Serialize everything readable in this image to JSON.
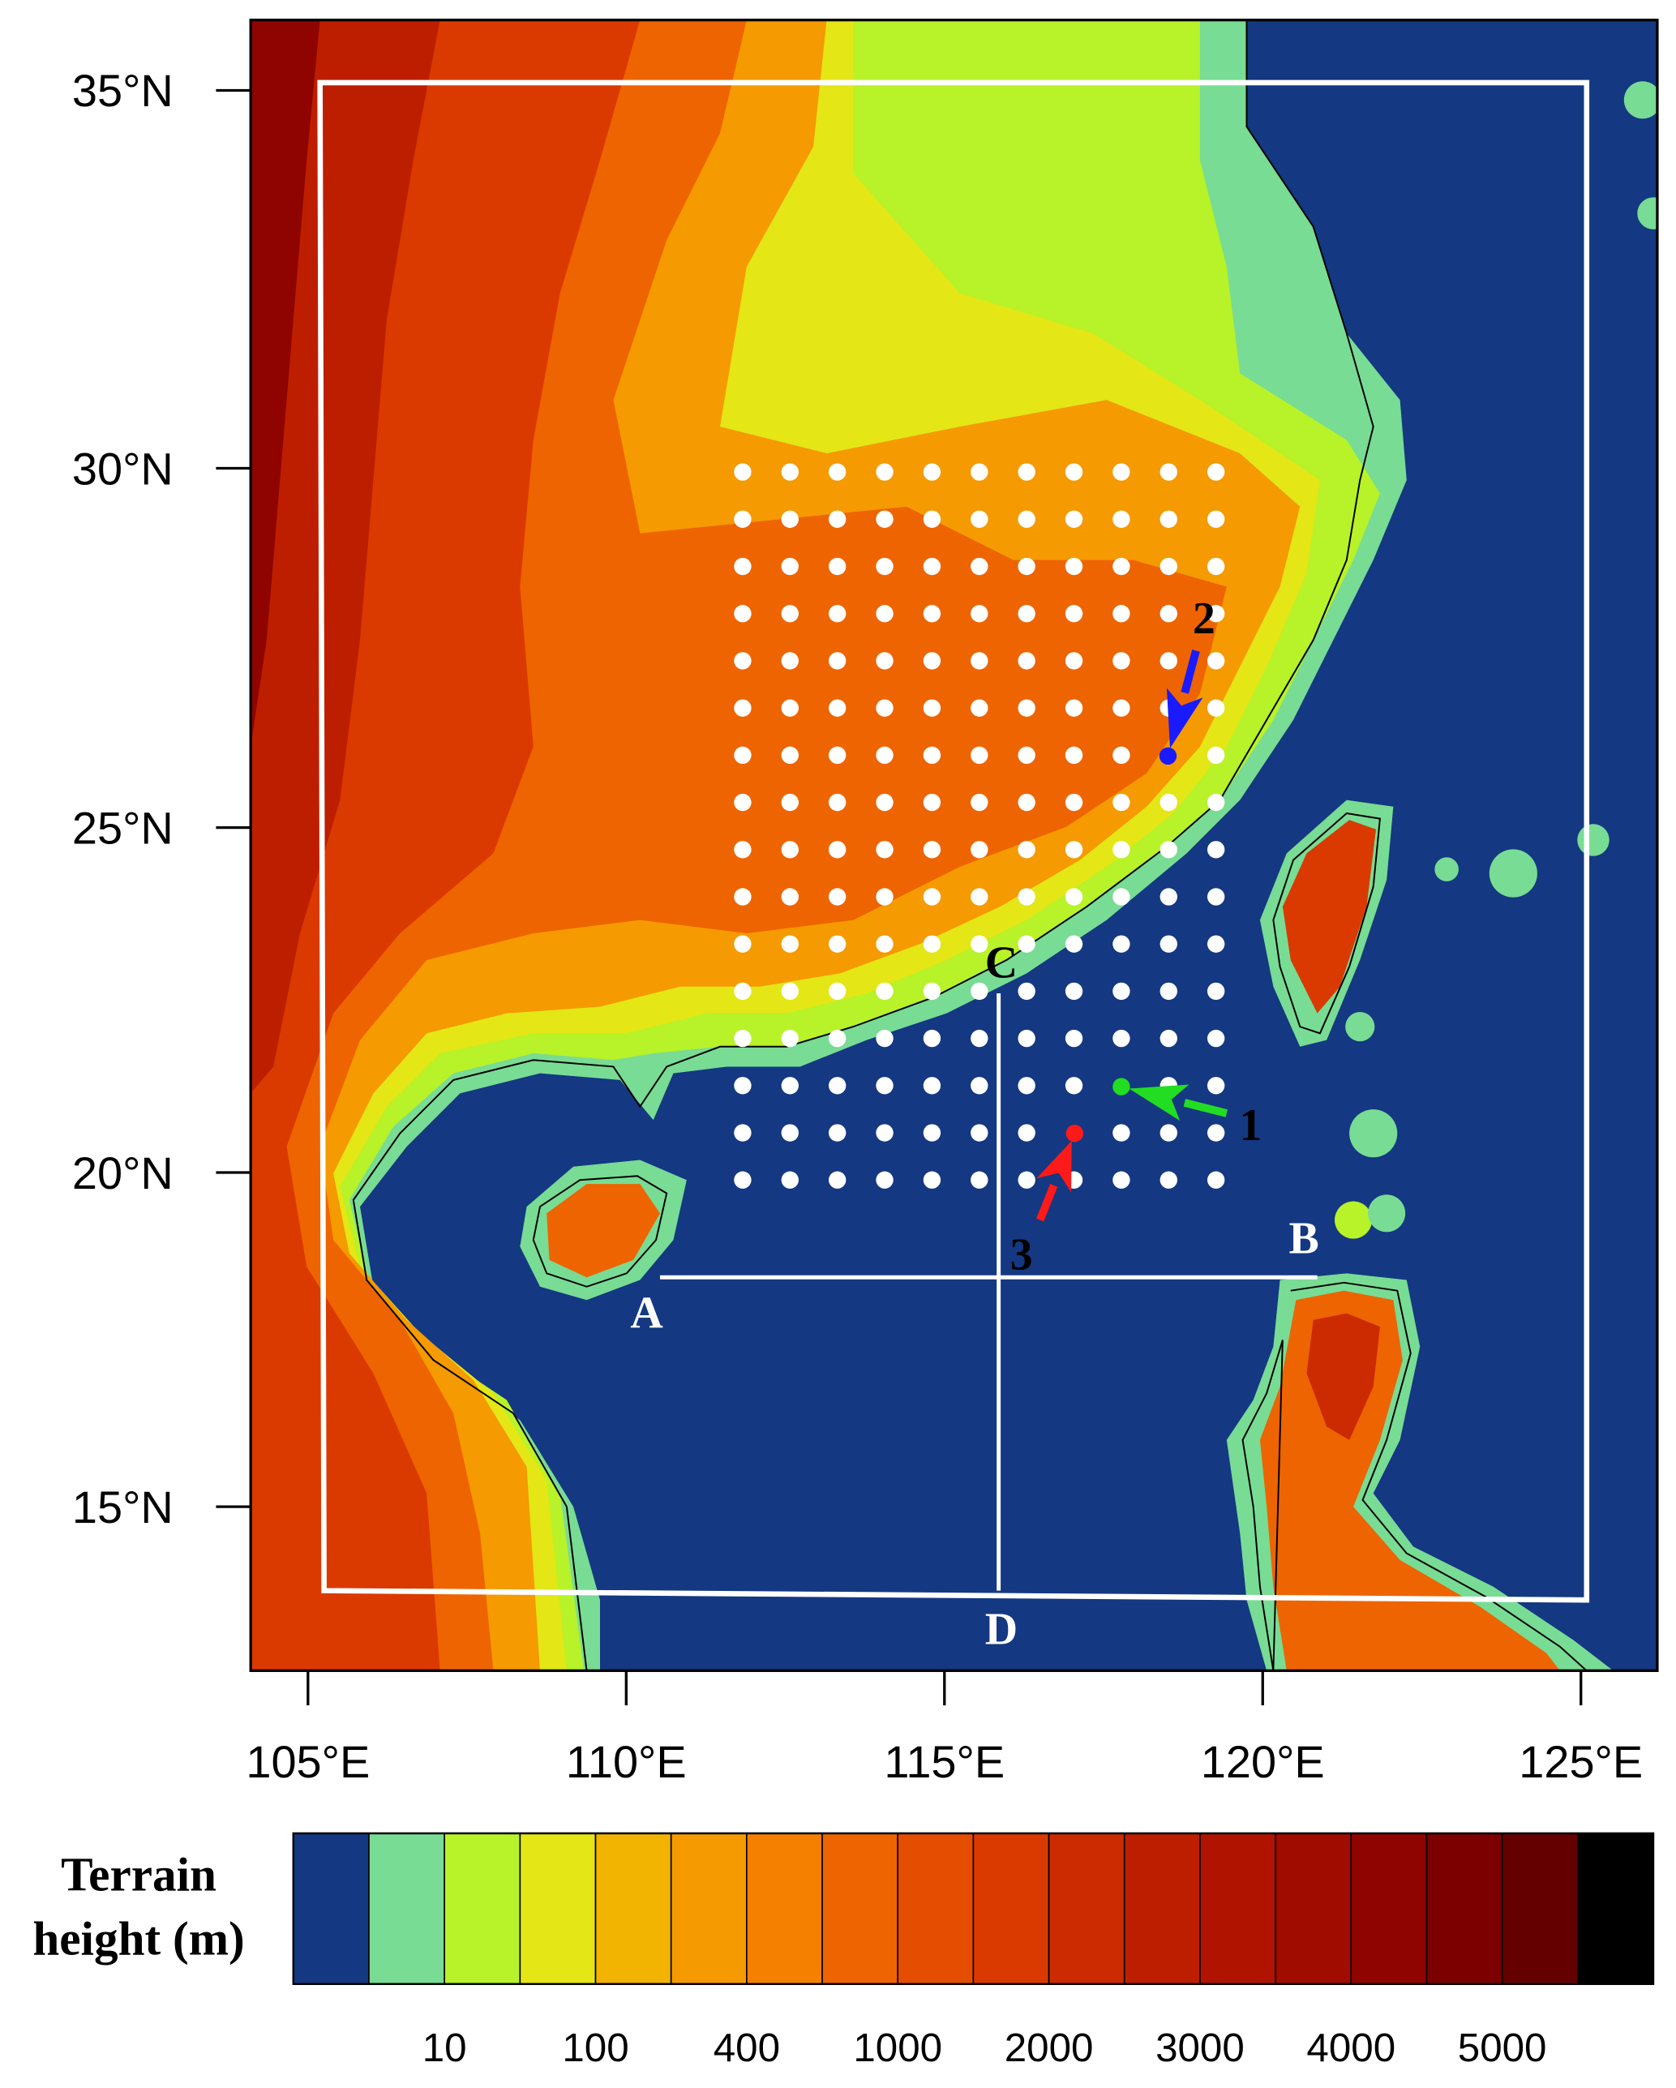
{
  "map": {
    "xlim": [
      104.1,
      126.2
    ],
    "ylim": [
      12.5,
      35.9
    ],
    "xticks": [
      {
        "value": 105,
        "label": "105°E"
      },
      {
        "value": 110,
        "label": "110°E"
      },
      {
        "value": 115,
        "label": "115°E"
      },
      {
        "value": 120,
        "label": "120°E"
      },
      {
        "value": 125,
        "label": "125°E"
      }
    ],
    "yticks": [
      {
        "value": 35,
        "label": "35°N"
      },
      {
        "value": 30,
        "label": "30°N"
      },
      {
        "value": 25,
        "label": "25°N"
      },
      {
        "value": 20,
        "label": "20°N"
      },
      {
        "value": 15,
        "label": "15°N"
      }
    ],
    "section_labels": [
      "A",
      "B",
      "C",
      "D"
    ],
    "point_labels": [
      "1",
      "2",
      "3"
    ],
    "point_colors": [
      "#22dd22",
      "#1a1aff",
      "#ff1a1a"
    ],
    "colorbar": {
      "title": [
        "Terrain",
        "height (m)"
      ],
      "colors": [
        "#143882",
        "#78dc94",
        "#b8f228",
        "#e4e616",
        "#f2b400",
        "#f59a00",
        "#f58000",
        "#ee6400",
        "#e54e00",
        "#da3a00",
        "#cc2a00",
        "#be1e00",
        "#b01400",
        "#a00c00",
        "#900400",
        "#7c0000",
        "#640000",
        "#000000"
      ],
      "ticks": [
        10,
        100,
        400,
        1000,
        2000,
        3000,
        4000,
        5000
      ]
    }
  }
}
